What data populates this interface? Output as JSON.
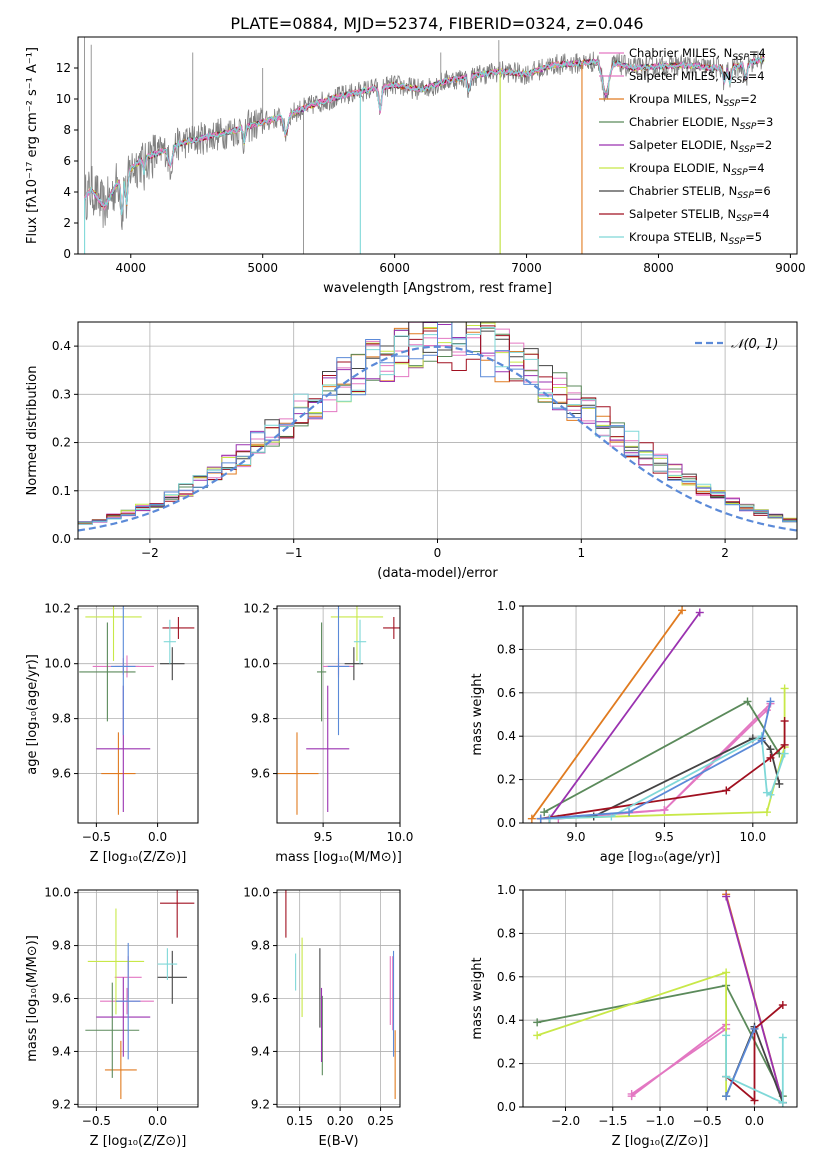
{
  "figure_title": "PLATE=0884, MJD=52374, FIBERID=0324, z=0.046",
  "colors": {
    "data": "#808080",
    "models": [
      "#e377c2",
      "#f4a6d7",
      "#d97b25",
      "#5b8a5b",
      "#9a32b0",
      "#d8ef5a",
      "#444444",
      "#a01020",
      "#7fd8d8"
    ],
    "models_alt": [
      "#e377c2",
      "#e377c2",
      "#e07b20",
      "#5b8a5b",
      "#9a32b0",
      "#c8e848",
      "#444444",
      "#a01020",
      "#7fd8d8"
    ],
    "gauss": "#5b8ad8",
    "blue_extra": "#5b8ad8"
  },
  "chart_data": [
    {
      "id": "spectrum",
      "type": "line",
      "xlabel": "wavelength [Angstrom, rest frame]",
      "ylabel": "Flux [fλ10⁻¹⁷ erg cm⁻² s⁻¹ A⁻¹]",
      "xlim": [
        3600,
        9050
      ],
      "ylim": [
        0,
        14
      ],
      "xticks": [
        4000,
        5000,
        6000,
        7000,
        8000,
        9000
      ],
      "yticks": [
        0,
        2,
        4,
        6,
        8,
        10,
        12
      ],
      "legend_position": "top-right",
      "series": [
        {
          "name": "Chabrier MILES, N",
          "sub": "SSP",
          "suffix": "=4"
        },
        {
          "name": "Salpeter MILES, N",
          "sub": "SSP",
          "suffix": "=4"
        },
        {
          "name": "Kroupa MILES, N",
          "sub": "SSP",
          "suffix": "=2"
        },
        {
          "name": "Chabrier ELODIE, N",
          "sub": "SSP",
          "suffix": "=3"
        },
        {
          "name": "Salpeter ELODIE, N",
          "sub": "SSP",
          "suffix": "=2"
        },
        {
          "name": "Kroupa ELODIE, N",
          "sub": "SSP",
          "suffix": "=4"
        },
        {
          "name": "Chabrier STELIB, N",
          "sub": "SSP",
          "suffix": "=6"
        },
        {
          "name": "Salpeter STELIB, N",
          "sub": "SSP",
          "suffix": "=4"
        },
        {
          "name": "Kroupa STELIB, N",
          "sub": "SSP",
          "suffix": "=5"
        }
      ],
      "continuum": {
        "x": [
          3650,
          3700,
          3800,
          3900,
          4000,
          4100,
          4200,
          4300,
          4400,
          4500,
          4600,
          4800,
          5000,
          5200,
          5400,
          5600,
          5800,
          6000,
          6200,
          6400,
          6600,
          6800,
          7000,
          7200,
          7400,
          7600,
          7800,
          8000,
          8200,
          8400,
          8600,
          8800
        ],
        "y": [
          3.6,
          4.2,
          3.0,
          4.6,
          5.5,
          6.2,
          6.5,
          6.9,
          7.2,
          7.4,
          7.6,
          8.0,
          8.5,
          9.0,
          9.7,
          10.2,
          10.6,
          10.9,
          10.6,
          11.2,
          11.5,
          11.8,
          11.6,
          12.2,
          12.3,
          12.5,
          12.0,
          12.1,
          12.2,
          12.0,
          12.1,
          12.6
        ]
      }
    },
    {
      "id": "residuals",
      "type": "histogram",
      "xlabel": "(data-model)/error",
      "ylabel": "Normed distribution",
      "xlim": [
        -2.5,
        2.5
      ],
      "ylim": [
        0,
        0.45
      ],
      "xticks": [
        -2,
        -1,
        0,
        1,
        2
      ],
      "yticks": [
        0.0,
        0.1,
        0.2,
        0.3,
        0.4
      ],
      "legend": "𝒩(0, 1)",
      "bin_width": 0.1,
      "bin_start": -2.5
    },
    {
      "id": "age-vs-Z",
      "type": "scatter",
      "xlabel": "Z [log₁₀(Z/Z⊙)]",
      "ylabel": "age  [log₁₀(age/yr)]",
      "xlim": [
        -0.65,
        0.33
      ],
      "ylim": [
        9.42,
        10.21
      ],
      "xticks": [
        -0.5,
        0.0
      ],
      "yticks": [
        9.6,
        9.8,
        10.0,
        10.2
      ],
      "points": [
        {
          "c": 0,
          "x": -0.28,
          "y": 9.99,
          "xe": 0.25,
          "ye": 0.03
        },
        {
          "c": 1,
          "x": -0.25,
          "y": 9.99,
          "xe": 0.1,
          "ye": 0.04
        },
        {
          "c": 2,
          "x": -0.32,
          "y": 9.6,
          "xe": 0.14,
          "ye": 0.15
        },
        {
          "c": 3,
          "x": -0.41,
          "y": 9.97,
          "xe": 0.23,
          "ye": 0.18
        },
        {
          "c": 4,
          "x": -0.28,
          "y": 9.69,
          "xe": 0.22,
          "ye": 0.23
        },
        {
          "c": 5,
          "x": -0.36,
          "y": 10.17,
          "xe": 0.23,
          "ye": 0.16
        },
        {
          "c": 6,
          "x": 0.12,
          "y": 10.0,
          "xe": 0.1,
          "ye": 0.06
        },
        {
          "c": 7,
          "x": 0.17,
          "y": 10.13,
          "xe": 0.13,
          "ye": 0.04
        },
        {
          "c": 8,
          "x": 0.1,
          "y": 10.08,
          "xe": 0.05,
          "ye": 0.08
        },
        {
          "c": 9,
          "x": -0.28,
          "y": 9.99,
          "xe": 0.1,
          "ye": 0.25
        }
      ]
    },
    {
      "id": "age-vs-mass",
      "type": "scatter",
      "xlabel": "mass [log₁₀(M/M⊙)]",
      "ylabel": "",
      "xlim": [
        9.2,
        10.0
      ],
      "ylim": [
        9.42,
        10.21
      ],
      "xticks": [
        9.5,
        10.0
      ],
      "yticks": [
        9.6,
        9.8,
        10.0,
        10.2
      ],
      "points": [
        {
          "c": 0,
          "x": 9.6,
          "y": 9.99,
          "xe": 0.1,
          "ye": 0.03
        },
        {
          "c": 1,
          "x": 9.6,
          "y": 9.99,
          "xe": 0.08,
          "ye": 0.04
        },
        {
          "c": 2,
          "x": 9.33,
          "y": 9.6,
          "xe": 0.14,
          "ye": 0.15
        },
        {
          "c": 3,
          "x": 9.49,
          "y": 9.97,
          "xe": 0.03,
          "ye": 0.18
        },
        {
          "c": 4,
          "x": 9.53,
          "y": 9.69,
          "xe": 0.14,
          "ye": 0.23
        },
        {
          "c": 5,
          "x": 9.72,
          "y": 10.17,
          "xe": 0.17,
          "ye": 0.16
        },
        {
          "c": 6,
          "x": 9.7,
          "y": 10.0,
          "xe": 0.06,
          "ye": 0.06
        },
        {
          "c": 7,
          "x": 9.96,
          "y": 10.13,
          "xe": 0.07,
          "ye": 0.04
        },
        {
          "c": 8,
          "x": 9.74,
          "y": 10.08,
          "xe": 0.04,
          "ye": 0.08
        },
        {
          "c": 9,
          "x": 9.6,
          "y": 9.99,
          "xe": 0.07,
          "ye": 0.25
        }
      ]
    },
    {
      "id": "weight-vs-age",
      "type": "line",
      "xlabel": "age  [log₁₀(age/yr)]",
      "ylabel": "mass weight",
      "xlim": [
        8.7,
        10.25
      ],
      "ylim": [
        0,
        1
      ],
      "xticks": [
        9.0,
        9.5,
        10.0
      ],
      "yticks": [
        0.0,
        0.2,
        0.4,
        0.6,
        0.8,
        1.0
      ],
      "series": [
        {
          "c": 0,
          "x": [
            8.9,
            9.5,
            10.1
          ],
          "y": [
            0.02,
            0.06,
            0.55
          ]
        },
        {
          "c": 1,
          "x": [
            8.8,
            9.5,
            10.08
          ],
          "y": [
            0.02,
            0.06,
            0.52
          ]
        },
        {
          "c": 2,
          "x": [
            8.75,
            9.6
          ],
          "y": [
            0.02,
            0.98
          ]
        },
        {
          "c": 3,
          "x": [
            8.82,
            9.97,
            10.15
          ],
          "y": [
            0.05,
            0.56,
            0.32
          ]
        },
        {
          "c": 4,
          "x": [
            8.85,
            9.7
          ],
          "y": [
            0.02,
            0.97
          ]
        },
        {
          "c": 5,
          "x": [
            8.8,
            10.08,
            10.18,
            10.18
          ],
          "y": [
            0.02,
            0.05,
            0.35,
            0.62
          ]
        },
        {
          "c": 6,
          "x": [
            8.85,
            9.1,
            10.0,
            10.05,
            10.1,
            10.15
          ],
          "y": [
            0.02,
            0.03,
            0.39,
            0.39,
            0.34,
            0.18
          ]
        },
        {
          "c": 7,
          "x": [
            8.8,
            9.85,
            10.1,
            10.18,
            10.18
          ],
          "y": [
            0.02,
            0.15,
            0.3,
            0.36,
            0.47
          ]
        },
        {
          "c": 8,
          "x": [
            8.85,
            9.2,
            10.05,
            10.08,
            10.1,
            10.18
          ],
          "y": [
            0.02,
            0.03,
            0.4,
            0.14,
            0.13,
            0.32
          ]
        },
        {
          "c": 9,
          "x": [
            8.8,
            9.3,
            10.05,
            10.1
          ],
          "y": [
            0.02,
            0.05,
            0.38,
            0.56
          ]
        }
      ]
    },
    {
      "id": "mass-vs-Z",
      "type": "scatter",
      "xlabel": "Z [log₁₀(Z/Z⊙)]",
      "ylabel": "mass [log₁₀(M/M⊙)]",
      "xlim": [
        -0.65,
        0.33
      ],
      "ylim": [
        9.19,
        10.01
      ],
      "xticks": [
        -0.5,
        0.0
      ],
      "yticks": [
        9.2,
        9.4,
        9.6,
        9.8,
        10.0
      ],
      "points": [
        {
          "c": 0,
          "x": -0.25,
          "y": 9.59,
          "xe": 0.22,
          "ye": 0.05
        },
        {
          "c": 1,
          "x": -0.24,
          "y": 9.68,
          "xe": 0.11,
          "ye": 0.08
        },
        {
          "c": 2,
          "x": -0.3,
          "y": 9.33,
          "xe": 0.13,
          "ye": 0.11
        },
        {
          "c": 3,
          "x": -0.37,
          "y": 9.48,
          "xe": 0.22,
          "ye": 0.18
        },
        {
          "c": 4,
          "x": -0.28,
          "y": 9.53,
          "xe": 0.22,
          "ye": 0.15
        },
        {
          "c": 5,
          "x": -0.34,
          "y": 9.74,
          "xe": 0.23,
          "ye": 0.2
        },
        {
          "c": 6,
          "x": 0.12,
          "y": 9.68,
          "xe": 0.12,
          "ye": 0.1
        },
        {
          "c": 7,
          "x": 0.16,
          "y": 9.96,
          "xe": 0.14,
          "ye": 0.13
        },
        {
          "c": 8,
          "x": 0.08,
          "y": 9.73,
          "xe": 0.08,
          "ye": 0.06
        },
        {
          "c": 9,
          "x": -0.24,
          "y": 9.59,
          "xe": 0.1,
          "ye": 0.22
        }
      ]
    },
    {
      "id": "mass-vs-EBV",
      "type": "scatter",
      "xlabel": "E(B-V)",
      "ylabel": "",
      "xlim": [
        0.122,
        0.274
      ],
      "ylim": [
        9.19,
        10.01
      ],
      "xticks": [
        0.15,
        0.2,
        0.25
      ],
      "yticks": [
        9.2,
        9.4,
        9.6,
        9.8,
        10.0
      ],
      "points": [
        {
          "c": 0,
          "x": 0.265,
          "y": 9.62,
          "ye": 0.14
        },
        {
          "c": 1,
          "x": 0.262,
          "y": 9.63,
          "ye": 0.13
        },
        {
          "c": 2,
          "x": 0.268,
          "y": 9.35,
          "ye": 0.13
        },
        {
          "c": 3,
          "x": 0.178,
          "y": 9.46,
          "ye": 0.15
        },
        {
          "c": 4,
          "x": 0.177,
          "y": 9.5,
          "ye": 0.14
        },
        {
          "c": 5,
          "x": 0.153,
          "y": 9.68,
          "ye": 0.15
        },
        {
          "c": 6,
          "x": 0.175,
          "y": 9.64,
          "ye": 0.15
        },
        {
          "c": 7,
          "x": 0.133,
          "y": 9.92,
          "ye": 0.09
        },
        {
          "c": 8,
          "x": 0.145,
          "y": 9.7,
          "ye": 0.07
        },
        {
          "c": 9,
          "x": 0.266,
          "y": 9.58,
          "ye": 0.2
        }
      ]
    },
    {
      "id": "weight-vs-Z",
      "type": "line",
      "xlabel": "Z [log₁₀(Z/Z⊙)]",
      "ylabel": "mass weight",
      "xlim": [
        -2.45,
        0.45
      ],
      "ylim": [
        0,
        1
      ],
      "xticks": [
        -2.0,
        -1.5,
        -1.0,
        -0.5,
        0.0
      ],
      "yticks": [
        0.0,
        0.2,
        0.4,
        0.6,
        0.8,
        1.0
      ],
      "series": [
        {
          "c": 0,
          "x": [
            -1.3,
            -0.3
          ],
          "y": [
            0.05,
            0.38
          ]
        },
        {
          "c": 1,
          "x": [
            -1.3,
            -0.3
          ],
          "y": [
            0.06,
            0.36
          ]
        },
        {
          "c": 2,
          "x": [
            -0.3,
            0.3
          ],
          "y": [
            0.98,
            0.02
          ]
        },
        {
          "c": 3,
          "x": [
            -2.3,
            -0.3,
            0.3
          ],
          "y": [
            0.39,
            0.56,
            0.05
          ]
        },
        {
          "c": 4,
          "x": [
            -0.3,
            0.3
          ],
          "y": [
            0.97,
            0.02
          ]
        },
        {
          "c": 5,
          "x": [
            -2.3,
            -0.3,
            -0.3
          ],
          "y": [
            0.33,
            0.62,
            0.05
          ]
        },
        {
          "c": 6,
          "x": [
            -0.3,
            0.0,
            0.3
          ],
          "y": [
            0.05,
            0.37,
            0.02
          ]
        },
        {
          "c": 7,
          "x": [
            -0.3,
            0.0,
            0.0,
            0.3
          ],
          "y": [
            0.14,
            0.03,
            0.36,
            0.47
          ]
        },
        {
          "c": 8,
          "x": [
            -0.3,
            -0.3,
            0.3,
            0.3
          ],
          "y": [
            0.33,
            0.14,
            0.02,
            0.32
          ]
        },
        {
          "c": 9,
          "x": [
            -0.3,
            0.0
          ],
          "y": [
            0.05,
            0.36
          ]
        }
      ]
    }
  ]
}
